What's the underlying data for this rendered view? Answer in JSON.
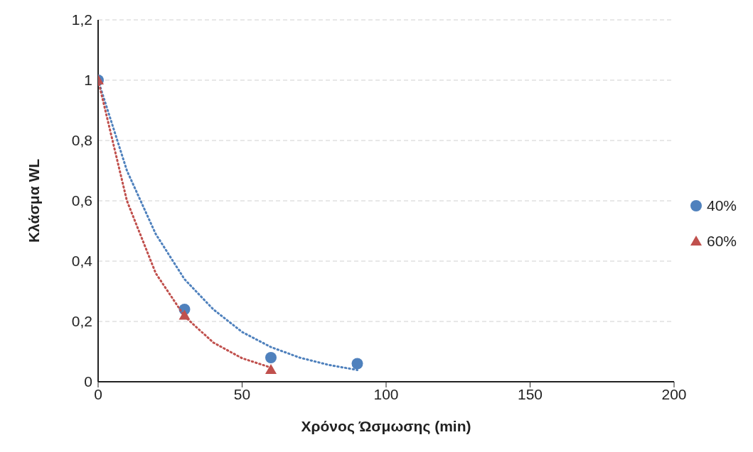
{
  "chart_data": {
    "type": "scatter",
    "xlabel": "Χρόνος Ώσμωσης (min)",
    "ylabel": "Κλάσμα WL",
    "xlim": [
      0,
      200
    ],
    "xticks": [
      0,
      50,
      100,
      150,
      200
    ],
    "ylim": [
      0,
      1.2
    ],
    "yticks": [
      0,
      {
        "value": 0.2,
        "label": "0,2"
      },
      {
        "value": 0.4,
        "label": "0,4"
      },
      {
        "value": 0.6,
        "label": "0,6"
      },
      {
        "value": 0.8,
        "label": "0,8"
      },
      1,
      {
        "value": 1.2,
        "label": "1,2"
      }
    ],
    "grid": "y",
    "legend": "right",
    "series": [
      {
        "name": "40%",
        "color": "#4f81bd",
        "marker": "circle",
        "x": [
          0,
          30,
          60,
          90
        ],
        "values": [
          1,
          0.24,
          0.08,
          0.06
        ]
      },
      {
        "name": "60%",
        "color": "#c0504d",
        "marker": "triangle",
        "x": [
          0,
          30,
          60
        ],
        "values": [
          1,
          0.22,
          0.04
        ]
      },
      {
        "type": "line",
        "color": "#4f81bd",
        "line_style": "dotted",
        "marker": "none",
        "x": [
          0,
          10,
          20,
          30,
          40,
          50,
          60,
          70,
          80,
          90
        ],
        "values": [
          1,
          0.7,
          0.49,
          0.34,
          0.24,
          0.165,
          0.115,
          0.08,
          0.056,
          0.039
        ]
      },
      {
        "type": "line",
        "color": "#c0504d",
        "line_style": "dotted",
        "marker": "none",
        "x": [
          0,
          10,
          20,
          30,
          40,
          50,
          60
        ],
        "values": [
          1,
          0.6,
          0.36,
          0.217,
          0.13,
          0.078,
          0.047
        ]
      }
    ]
  }
}
